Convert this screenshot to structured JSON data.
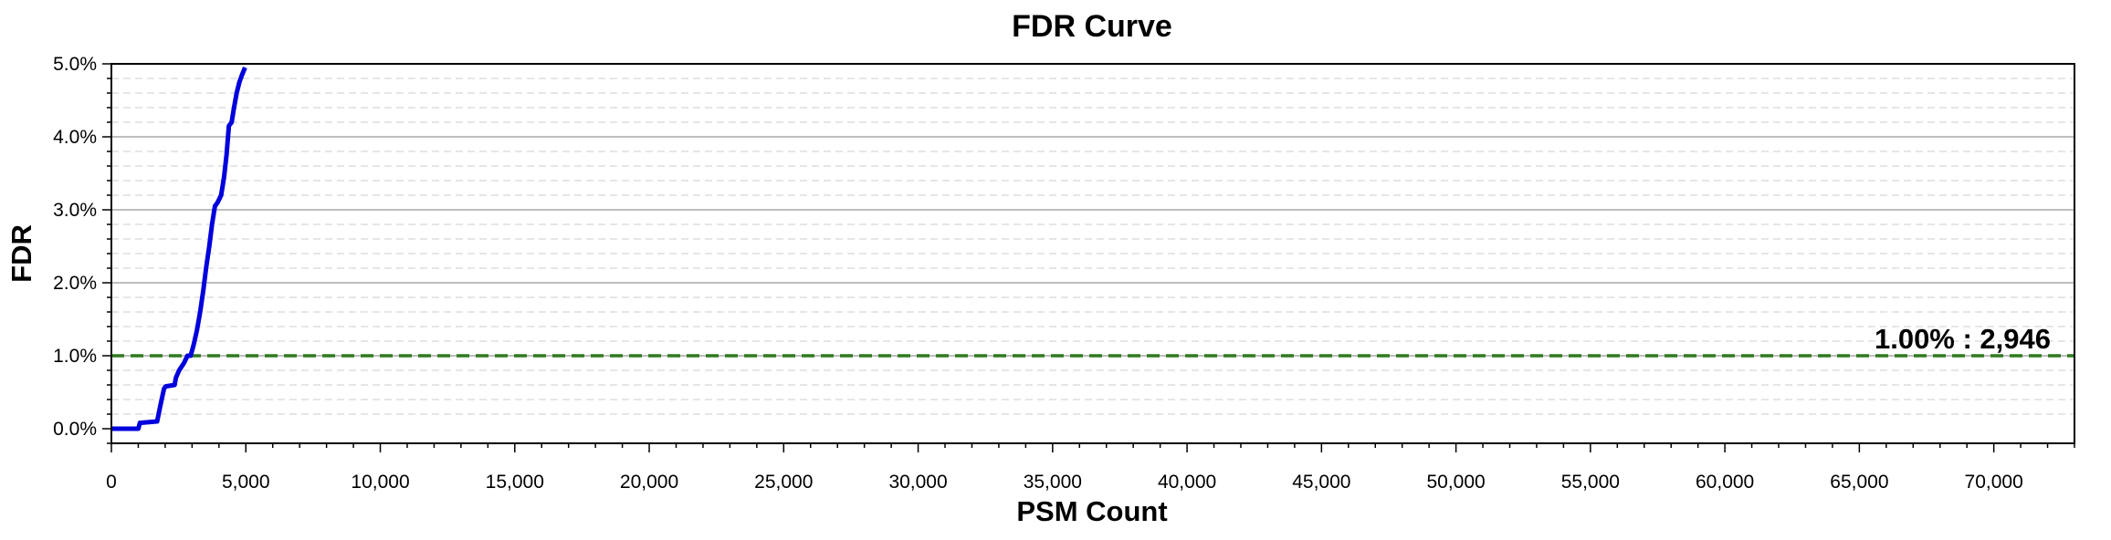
{
  "chart_data": {
    "type": "line",
    "title": "FDR Curve",
    "xlabel": "PSM Count",
    "ylabel": "FDR",
    "xlim": [
      0,
      73000
    ],
    "ylim": [
      -0.2,
      5.0
    ],
    "x_ticks": [
      0,
      5000,
      10000,
      15000,
      20000,
      25000,
      30000,
      35000,
      40000,
      45000,
      50000,
      55000,
      60000,
      65000,
      70000
    ],
    "x_tick_labels": [
      "0",
      "5,000",
      "10,000",
      "15,000",
      "20,000",
      "25,000",
      "30,000",
      "35,000",
      "40,000",
      "45,000",
      "50,000",
      "55,000",
      "60,000",
      "65,000",
      "70,000"
    ],
    "y_ticks": [
      0,
      1,
      2,
      3,
      4,
      5
    ],
    "y_tick_labels": [
      "0.0%",
      "1.0%",
      "2.0%",
      "3.0%",
      "4.0%",
      "5.0%"
    ],
    "grid": true,
    "series": [
      {
        "color": "#0000dd",
        "x": [
          0,
          1000,
          1060,
          1700,
          1800,
          1880,
          1960,
          2020,
          2350,
          2400,
          2520,
          2700,
          2830,
          2946,
          3060,
          3180,
          3300,
          3420,
          3520,
          3640,
          3740,
          3850,
          3950,
          4080,
          4190,
          4280,
          4370,
          4470,
          4560,
          4660,
          4760,
          4860,
          4970
        ],
        "y": [
          0,
          0,
          0.08,
          0.1,
          0.28,
          0.42,
          0.55,
          0.58,
          0.6,
          0.7,
          0.8,
          0.9,
          1.0,
          1.0,
          1.15,
          1.35,
          1.6,
          1.9,
          2.2,
          2.5,
          2.8,
          3.05,
          3.1,
          3.2,
          3.45,
          3.75,
          4.15,
          4.2,
          4.4,
          4.6,
          4.75,
          4.85,
          4.95
        ]
      }
    ],
    "threshold": {
      "y": 1.0,
      "color": "#2f7a1f",
      "label": "1.00% : 2,946"
    }
  }
}
